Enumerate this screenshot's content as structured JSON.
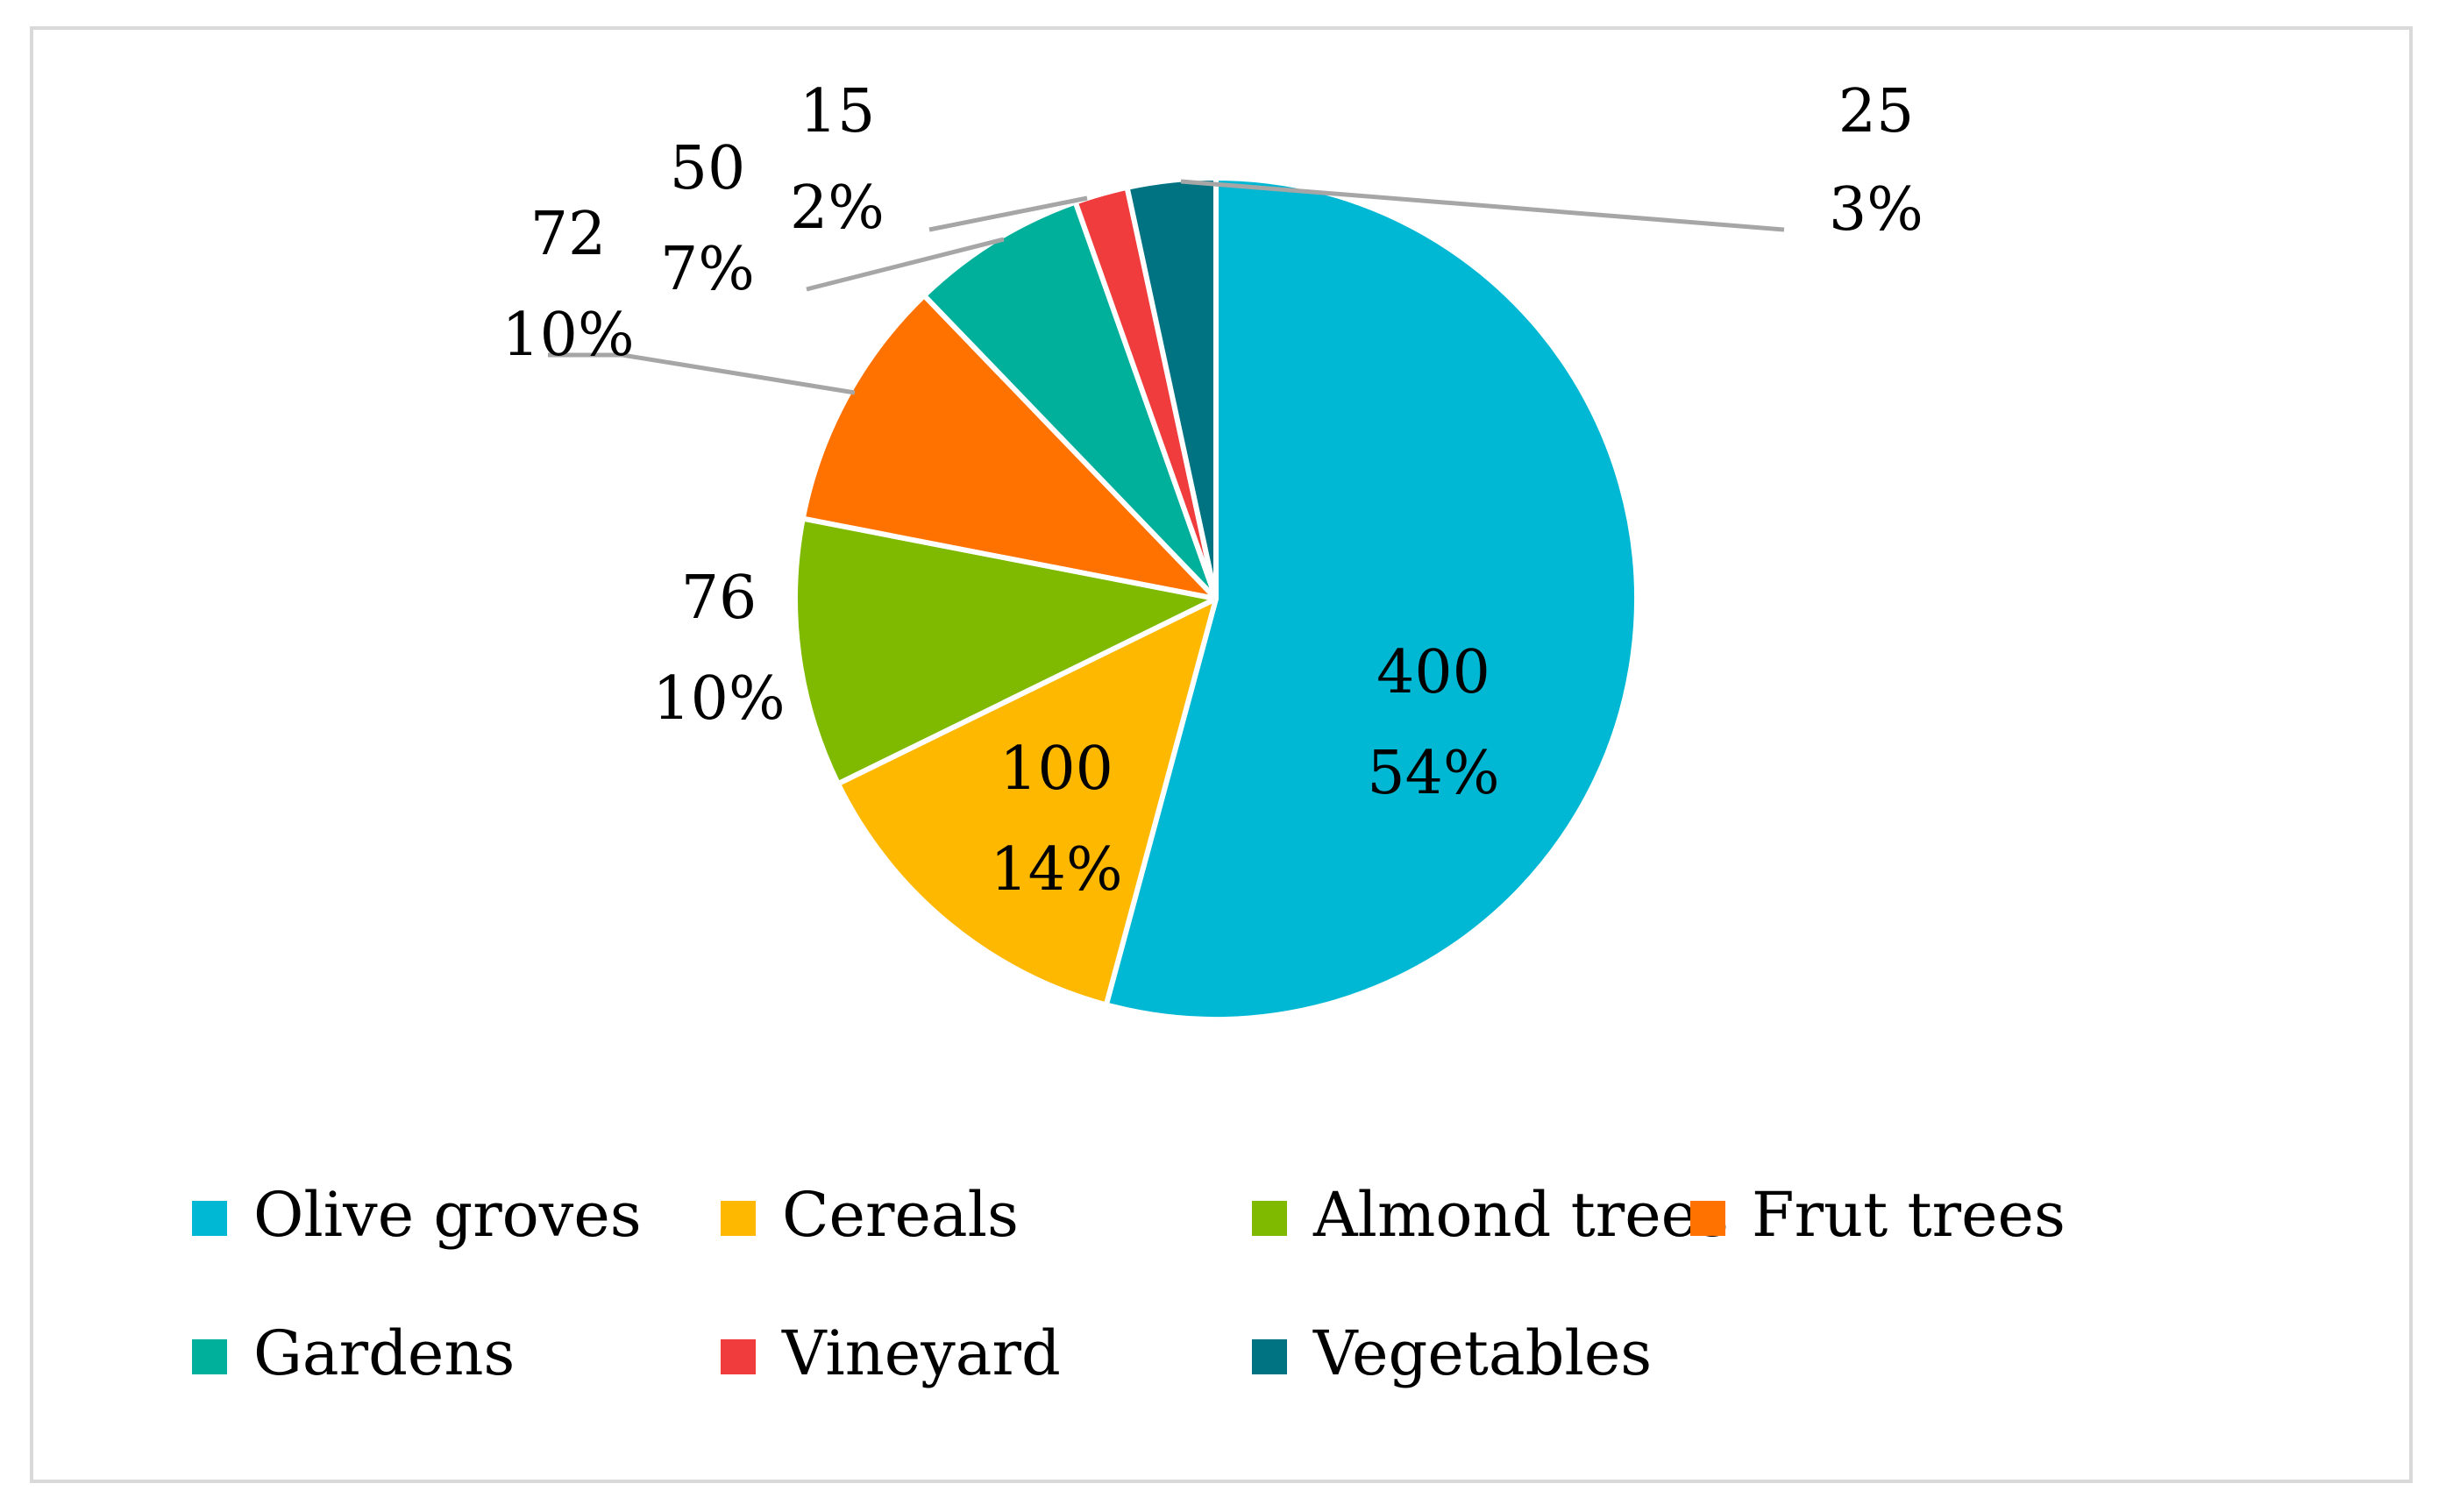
{
  "chart_data": {
    "type": "pie",
    "title": "",
    "categories": [
      "Olive groves",
      "Cereals",
      "Almond trees",
      "Frut trees",
      "Gardens",
      "Vineyard",
      "Vegetables"
    ],
    "values": [
      400,
      100,
      76,
      72,
      50,
      15,
      25
    ],
    "percent_labels": [
      "54%",
      "14%",
      "10%",
      "10%",
      "7%",
      "2%",
      "3%"
    ],
    "value_labels": [
      "400",
      "100",
      "76",
      "72",
      "50",
      "15",
      "25"
    ],
    "colors": [
      "#00B8D4",
      "#FFB800",
      "#7FBA00",
      "#FF7200",
      "#00B09B",
      "#F03C3C",
      "#007383"
    ],
    "legend_position": "bottom",
    "start_angle_deg": 0,
    "direction": "clockwise"
  }
}
